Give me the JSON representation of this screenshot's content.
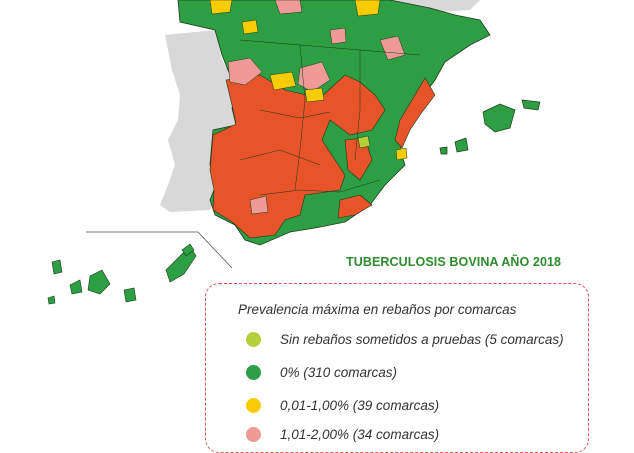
{
  "title": "TUBERCULOSIS BOVINA AÑO 2018",
  "legend": {
    "heading": "Prevalencia máxima en rebaños por comarcas",
    "items": [
      {
        "label": "Sin rebaños sometidos a pruebas  (5 comarcas)",
        "color": "#b5cf3a"
      },
      {
        "label": "0% (310 comarcas)",
        "color": "#2e9e45"
      },
      {
        "label": "0,01-1,00% (39 comarcas)",
        "color": "#f7cc05"
      },
      {
        "label": "1,01-2,00% (34 comarcas)",
        "color": "#ef9a96"
      }
    ]
  },
  "colors": {
    "no_herds": "#b5cf3a",
    "zero": "#2e9e45",
    "low": "#f7cc05",
    "medium": "#ef9a96",
    "high": "#e8542a",
    "portugal": "#d8d8d8",
    "border": "#1a3a1a"
  },
  "icons": [
    "map-of-spain",
    "legend-dot"
  ]
}
